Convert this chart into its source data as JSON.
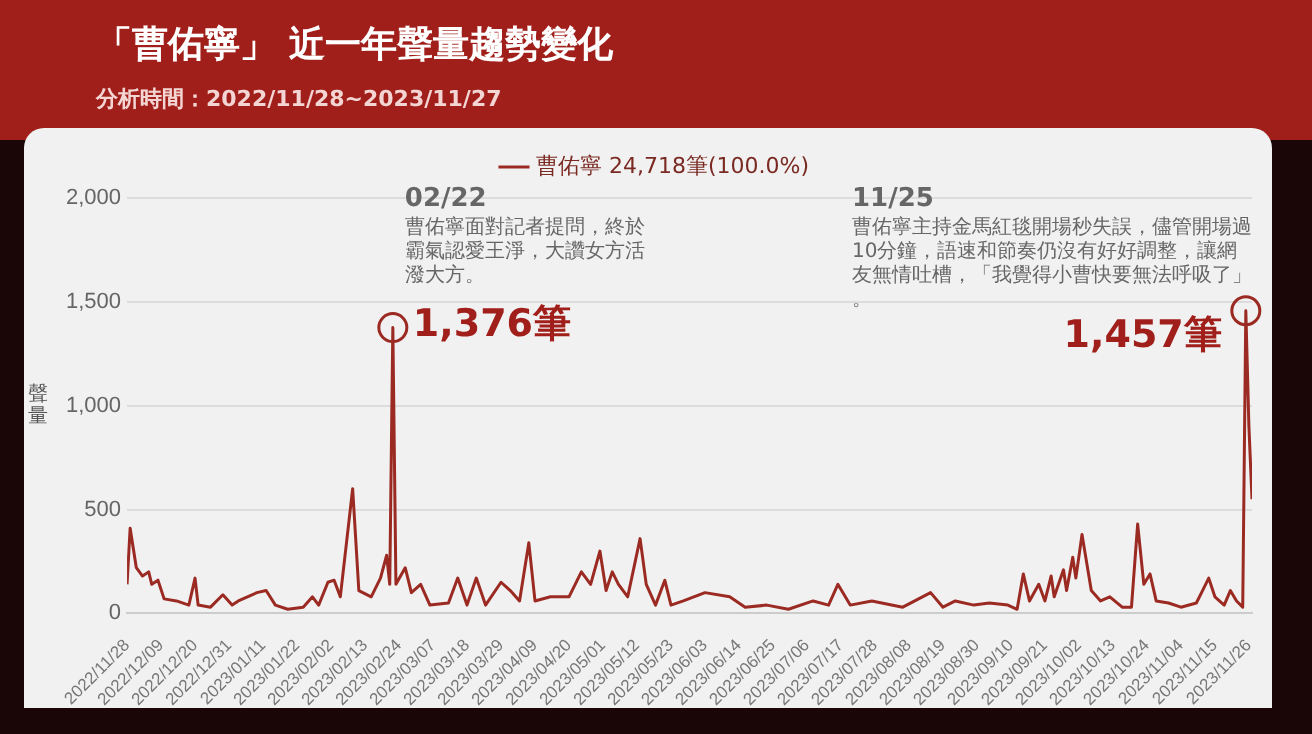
{
  "chart_data": {
    "type": "line",
    "title": "「曹佑寧」 近一年聲量趨勢變化",
    "subtitle": "分析時間：2022/11/28~2023/11/27",
    "ylabel": "聲量",
    "series": [
      {
        "name": "曹佑寧 24,718筆(100.0%)",
        "color": "#9b2a22",
        "x": [
          "2022-11-28",
          "2022-11-29",
          "2022-12-01",
          "2022-12-03",
          "2022-12-05",
          "2022-12-06",
          "2022-12-08",
          "2022-12-10",
          "2022-12-14",
          "2022-12-18",
          "2022-12-20",
          "2022-12-21",
          "2022-12-25",
          "2022-12-29",
          "2023-01-01",
          "2023-01-03",
          "2023-01-09",
          "2023-01-12",
          "2023-01-15",
          "2023-01-19",
          "2023-01-24",
          "2023-01-27",
          "2023-01-29",
          "2023-02-01",
          "2023-02-03",
          "2023-02-05",
          "2023-02-09",
          "2023-02-11",
          "2023-02-15",
          "2023-02-18",
          "2023-02-20",
          "2023-02-21",
          "2023-02-22",
          "2023-02-23",
          "2023-02-26",
          "2023-02-28",
          "2023-03-03",
          "2023-03-06",
          "2023-03-12",
          "2023-03-15",
          "2023-03-18",
          "2023-03-21",
          "2023-03-24",
          "2023-03-29",
          "2023-04-01",
          "2023-04-04",
          "2023-04-07",
          "2023-04-09",
          "2023-04-14",
          "2023-04-20",
          "2023-04-24",
          "2023-04-27",
          "2023-04-30",
          "2023-05-02",
          "2023-05-04",
          "2023-05-06",
          "2023-05-09",
          "2023-05-13",
          "2023-05-15",
          "2023-05-18",
          "2023-05-21",
          "2023-05-23",
          "2023-05-27",
          "2023-06-03",
          "2023-06-11",
          "2023-06-16",
          "2023-06-23",
          "2023-06-30",
          "2023-07-08",
          "2023-07-13",
          "2023-07-16",
          "2023-07-20",
          "2023-07-27",
          "2023-08-06",
          "2023-08-15",
          "2023-08-19",
          "2023-08-23",
          "2023-08-29",
          "2023-09-03",
          "2023-09-09",
          "2023-09-12",
          "2023-09-14",
          "2023-09-16",
          "2023-09-19",
          "2023-09-21",
          "2023-09-23",
          "2023-09-24",
          "2023-09-27",
          "2023-09-28",
          "2023-09-30",
          "2023-10-01",
          "2023-10-03",
          "2023-10-04",
          "2023-10-06",
          "2023-10-09",
          "2023-10-12",
          "2023-10-16",
          "2023-10-19",
          "2023-10-21",
          "2023-10-23",
          "2023-10-25",
          "2023-10-27",
          "2023-10-31",
          "2023-11-04",
          "2023-11-09",
          "2023-11-11",
          "2023-11-13",
          "2023-11-15",
          "2023-11-18",
          "2023-11-20",
          "2023-11-22",
          "2023-11-24",
          "2023-11-25",
          "2023-11-26",
          "2023-11-27"
        ],
        "values": [
          140,
          410,
          220,
          180,
          200,
          140,
          160,
          70,
          60,
          40,
          170,
          40,
          30,
          90,
          40,
          60,
          100,
          110,
          40,
          20,
          30,
          80,
          40,
          150,
          160,
          80,
          600,
          110,
          80,
          170,
          280,
          140,
          1376,
          140,
          220,
          100,
          140,
          40,
          50,
          170,
          40,
          170,
          40,
          150,
          110,
          60,
          340,
          60,
          80,
          80,
          200,
          140,
          300,
          110,
          200,
          140,
          80,
          360,
          140,
          40,
          160,
          40,
          60,
          100,
          80,
          30,
          40,
          20,
          60,
          40,
          140,
          40,
          60,
          30,
          100,
          30,
          60,
          40,
          50,
          40,
          20,
          190,
          60,
          140,
          60,
          180,
          80,
          210,
          110,
          270,
          170,
          380,
          290,
          110,
          60,
          80,
          30,
          30,
          430,
          140,
          190,
          60,
          50,
          30,
          50,
          110,
          170,
          80,
          40,
          110,
          60,
          30,
          1457,
          900,
          550
        ]
      }
    ],
    "xlim": [
      "2022-11-28",
      "2023-11-27"
    ],
    "xticks": [
      {
        "value": "2022-11-28",
        "label": "2022/11/28"
      },
      {
        "value": "2022-12-09",
        "label": "2022/12/09"
      },
      {
        "value": "2022-12-20",
        "label": "2022/12/20"
      },
      {
        "value": "2022-12-31",
        "label": "2022/12/31"
      },
      {
        "value": "2023-01-11",
        "label": "2023/01/11"
      },
      {
        "value": "2023-01-22",
        "label": "2023/01/22"
      },
      {
        "value": "2023-02-02",
        "label": "2023/02/02"
      },
      {
        "value": "2023-02-13",
        "label": "2023/02/13"
      },
      {
        "value": "2023-02-24",
        "label": "2023/02/24"
      },
      {
        "value": "2023-03-07",
        "label": "2023/03/07"
      },
      {
        "value": "2023-03-18",
        "label": "2023/03/18"
      },
      {
        "value": "2023-03-29",
        "label": "2023/03/29"
      },
      {
        "value": "2023-04-09",
        "label": "2023/04/09"
      },
      {
        "value": "2023-04-20",
        "label": "2023/04/20"
      },
      {
        "value": "2023-05-01",
        "label": "2023/05/01"
      },
      {
        "value": "2023-05-12",
        "label": "2023/05/12"
      },
      {
        "value": "2023-05-23",
        "label": "2023/05/23"
      },
      {
        "value": "2023-06-03",
        "label": "2023/06/03"
      },
      {
        "value": "2023-06-14",
        "label": "2023/06/14"
      },
      {
        "value": "2023-06-25",
        "label": "2023/06/25"
      },
      {
        "value": "2023-07-06",
        "label": "2023/07/06"
      },
      {
        "value": "2023-07-17",
        "label": "2023/07/17"
      },
      {
        "value": "2023-07-28",
        "label": "2023/07/28"
      },
      {
        "value": "2023-08-08",
        "label": "2023/08/08"
      },
      {
        "value": "2023-08-19",
        "label": "2023/08/19"
      },
      {
        "value": "2023-08-30",
        "label": "2023/08/30"
      },
      {
        "value": "2023-09-10",
        "label": "2023/09/10"
      },
      {
        "value": "2023-09-21",
        "label": "2023/09/21"
      },
      {
        "value": "2023-10-02",
        "label": "2023/10/02"
      },
      {
        "value": "2023-10-13",
        "label": "2023/10/13"
      },
      {
        "value": "2023-10-24",
        "label": "2023/10/24"
      },
      {
        "value": "2023-11-04",
        "label": "2023/11/04"
      },
      {
        "value": "2023-11-15",
        "label": "2023/11/15"
      },
      {
        "value": "2023-11-26",
        "label": "2023/11/26"
      }
    ],
    "ylim": [
      0,
      2000
    ],
    "yticks": [
      {
        "value": 0,
        "label": "0"
      },
      {
        "value": 500,
        "label": "500"
      },
      {
        "value": 1000,
        "label": "1,000"
      },
      {
        "value": 1500,
        "label": "1,500"
      },
      {
        "value": 2000,
        "label": "2,000"
      }
    ],
    "grid": "y",
    "legend": "top",
    "marker": "none",
    "line_style": "solid",
    "annotations": [
      "02/22",
      "曹佑寧面對記者提問，終於霸氣認愛王淨，大讚女方活潑大方。",
      {
        "text": "1,376筆",
        "x": "2023-02-22",
        "y": 1376
      },
      "11/25",
      "曹佑寧主持金馬紅毯開場秒失誤，儘管開場過10分鐘，語速和節奏仍沒有好好調整，讓網友無情吐槽，「我覺得小曹快要無法呼吸了」。",
      {
        "text": "1,457筆",
        "x": "2023-11-25",
        "y": 1457
      }
    ]
  }
}
